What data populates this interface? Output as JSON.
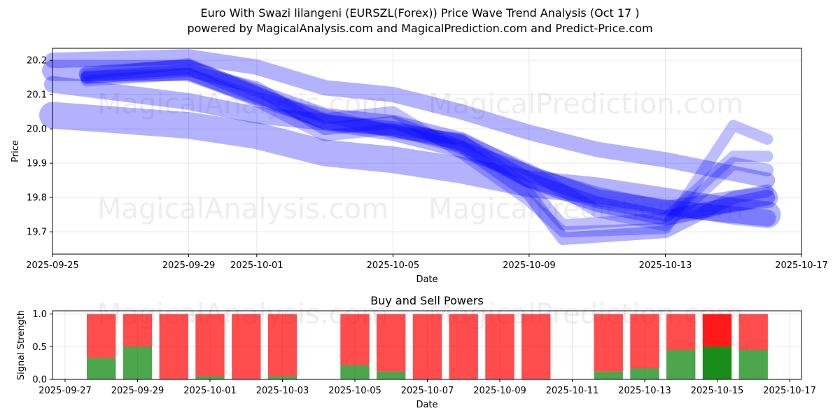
{
  "header": {
    "title_line1": "Euro With Swazi lilangeni (EURSZL(Forex)) Price Wave Trend Analysis (Oct 17 )",
    "title_line2": "powered by MagicalAnalysis.com and MagicalPrediction.com and Predict-Price.com"
  },
  "watermarks": [
    "MagicalAnalysis.com",
    "MagicalPrediction.com"
  ],
  "colors": {
    "wave": "#0000ff",
    "buy": "#008000",
    "sell": "#ff0000",
    "grid": "#e6e6e6"
  },
  "chart_data": [
    {
      "type": "line",
      "name": "price-wave",
      "xlabel": "Date",
      "ylabel": "Price",
      "x_range": [
        "2025-09-25",
        "2025-10-17"
      ],
      "ylim": [
        19.635,
        20.235
      ],
      "x_ticks": [
        "2025-09-25",
        "2025-09-29",
        "2025-10-01",
        "2025-10-05",
        "2025-10-09",
        "2025-10-13",
        "2025-10-17"
      ],
      "y_ticks": [
        19.7,
        19.8,
        19.9,
        20.0,
        20.1,
        20.2
      ],
      "grid": true,
      "series": [
        {
          "name": "wave-1",
          "width": 22,
          "opacity": 0.3,
          "x": [
            "2025-09-25",
            "2025-09-29",
            "2025-10-01",
            "2025-10-03",
            "2025-10-05",
            "2025-10-07",
            "2025-10-09",
            "2025-10-11",
            "2025-10-13",
            "2025-10-15",
            "2025-10-16"
          ],
          "y": [
            20.2,
            20.21,
            20.18,
            20.12,
            20.1,
            20.05,
            19.99,
            19.94,
            19.91,
            19.87,
            19.85
          ]
        },
        {
          "name": "wave-2",
          "width": 24,
          "opacity": 0.3,
          "x": [
            "2025-09-25",
            "2025-09-29",
            "2025-10-01",
            "2025-10-03",
            "2025-10-05",
            "2025-10-07",
            "2025-10-09",
            "2025-10-11",
            "2025-10-13",
            "2025-10-15",
            "2025-10-16"
          ],
          "y": [
            20.13,
            20.08,
            20.04,
            20.02,
            19.99,
            19.94,
            19.87,
            19.8,
            19.77,
            19.75,
            19.74
          ]
        },
        {
          "name": "wave-3",
          "width": 38,
          "opacity": 0.3,
          "x": [
            "2025-09-25",
            "2025-09-29",
            "2025-10-01",
            "2025-10-03",
            "2025-10-05",
            "2025-10-07",
            "2025-10-09",
            "2025-10-11",
            "2025-10-13",
            "2025-10-15",
            "2025-10-16"
          ],
          "y": [
            20.04,
            20.01,
            19.98,
            19.93,
            19.91,
            19.88,
            19.84,
            19.82,
            19.79,
            19.76,
            19.75
          ]
        },
        {
          "name": "wave-4",
          "width": 30,
          "opacity": 0.3,
          "x": [
            "2025-09-25",
            "2025-09-29",
            "2025-10-01",
            "2025-10-03",
            "2025-10-05",
            "2025-10-07",
            "2025-10-09",
            "2025-10-11",
            "2025-10-13",
            "2025-10-15",
            "2025-10-16"
          ],
          "y": [
            20.17,
            20.17,
            20.1,
            20.03,
            20.01,
            19.96,
            19.86,
            19.8,
            19.76,
            19.79,
            19.8
          ]
        },
        {
          "name": "wave-5",
          "width": 22,
          "opacity": 0.35,
          "x": [
            "2025-09-26",
            "2025-09-29",
            "2025-10-01",
            "2025-10-03",
            "2025-10-05",
            "2025-10-07",
            "2025-10-09",
            "2025-10-11",
            "2025-10-13",
            "2025-10-15",
            "2025-10-16"
          ],
          "y": [
            20.16,
            20.18,
            20.1,
            20.02,
            20.0,
            19.96,
            19.85,
            19.78,
            19.74,
            19.78,
            19.8
          ]
        },
        {
          "name": "wave-6",
          "width": 18,
          "opacity": 0.3,
          "x": [
            "2025-09-26",
            "2025-09-29",
            "2025-10-01",
            "2025-10-03",
            "2025-10-05",
            "2025-10-07",
            "2025-10-09",
            "2025-10-10",
            "2025-10-13",
            "2025-10-15",
            "2025-10-16"
          ],
          "y": [
            20.15,
            20.17,
            20.12,
            20.0,
            20.02,
            19.95,
            19.81,
            19.68,
            19.7,
            19.8,
            19.82
          ]
        },
        {
          "name": "wave-7",
          "width": 16,
          "opacity": 0.25,
          "x": [
            "2025-09-26",
            "2025-09-29",
            "2025-10-01",
            "2025-10-03",
            "2025-10-05",
            "2025-10-07",
            "2025-10-09",
            "2025-10-10",
            "2025-10-13",
            "2025-10-15",
            "2025-10-16"
          ],
          "y": [
            20.14,
            20.16,
            20.08,
            19.98,
            20.0,
            19.97,
            19.83,
            19.72,
            19.74,
            19.92,
            19.92
          ]
        },
        {
          "name": "wave-8",
          "width": 16,
          "opacity": 0.25,
          "x": [
            "2025-09-26",
            "2025-09-29",
            "2025-10-01",
            "2025-10-03",
            "2025-10-05",
            "2025-10-07",
            "2025-10-09",
            "2025-10-10",
            "2025-10-13",
            "2025-10-15",
            "2025-10-16"
          ],
          "y": [
            20.16,
            20.19,
            20.11,
            20.03,
            20.05,
            19.93,
            19.79,
            19.7,
            19.71,
            20.01,
            19.97
          ]
        },
        {
          "name": "wave-9",
          "width": 18,
          "opacity": 0.25,
          "x": [
            "2025-09-26",
            "2025-09-29",
            "2025-10-01",
            "2025-10-03",
            "2025-10-05",
            "2025-10-07",
            "2025-10-09",
            "2025-10-11",
            "2025-10-13",
            "2025-10-15",
            "2025-10-16"
          ],
          "y": [
            20.15,
            20.16,
            20.09,
            20.04,
            19.99,
            19.97,
            19.88,
            19.76,
            19.72,
            19.9,
            19.88
          ]
        }
      ]
    },
    {
      "type": "bar",
      "name": "buy-sell-powers",
      "title": "Buy and Sell Powers",
      "xlabel": "Date",
      "ylabel": "Signal Strength",
      "x_range": [
        "2025-09-27",
        "2025-10-17"
      ],
      "ylim": [
        0,
        1.05
      ],
      "x_ticks": [
        "2025-09-27",
        "2025-09-29",
        "2025-10-01",
        "2025-10-03",
        "2025-10-05",
        "2025-10-07",
        "2025-10-09",
        "2025-10-11",
        "2025-10-13",
        "2025-10-15",
        "2025-10-17"
      ],
      "y_ticks": [
        "0.0",
        "0.5",
        "1.0"
      ],
      "categories": [
        "2025-09-28",
        "2025-09-29",
        "2025-09-30",
        "2025-10-01",
        "2025-10-02",
        "2025-10-03",
        "2025-10-05",
        "2025-10-06",
        "2025-10-07",
        "2025-10-08",
        "2025-10-09",
        "2025-10-10",
        "2025-10-12",
        "2025-10-13",
        "2025-10-14",
        "2025-10-15",
        "2025-10-16"
      ],
      "series": [
        {
          "name": "Buy",
          "values": [
            0.33,
            0.5,
            0.0,
            0.05,
            0.0,
            0.05,
            0.22,
            0.12,
            0.0,
            0.0,
            0.0,
            0.0,
            0.12,
            0.17,
            0.45,
            0.5,
            0.45
          ]
        },
        {
          "name": "Sell",
          "values": [
            0.67,
            0.5,
            1.0,
            0.95,
            1.0,
            0.95,
            0.78,
            0.88,
            1.0,
            1.0,
            1.0,
            1.0,
            0.88,
            0.83,
            0.55,
            0.5,
            0.55
          ]
        }
      ],
      "highlight": "2025-10-15"
    }
  ]
}
